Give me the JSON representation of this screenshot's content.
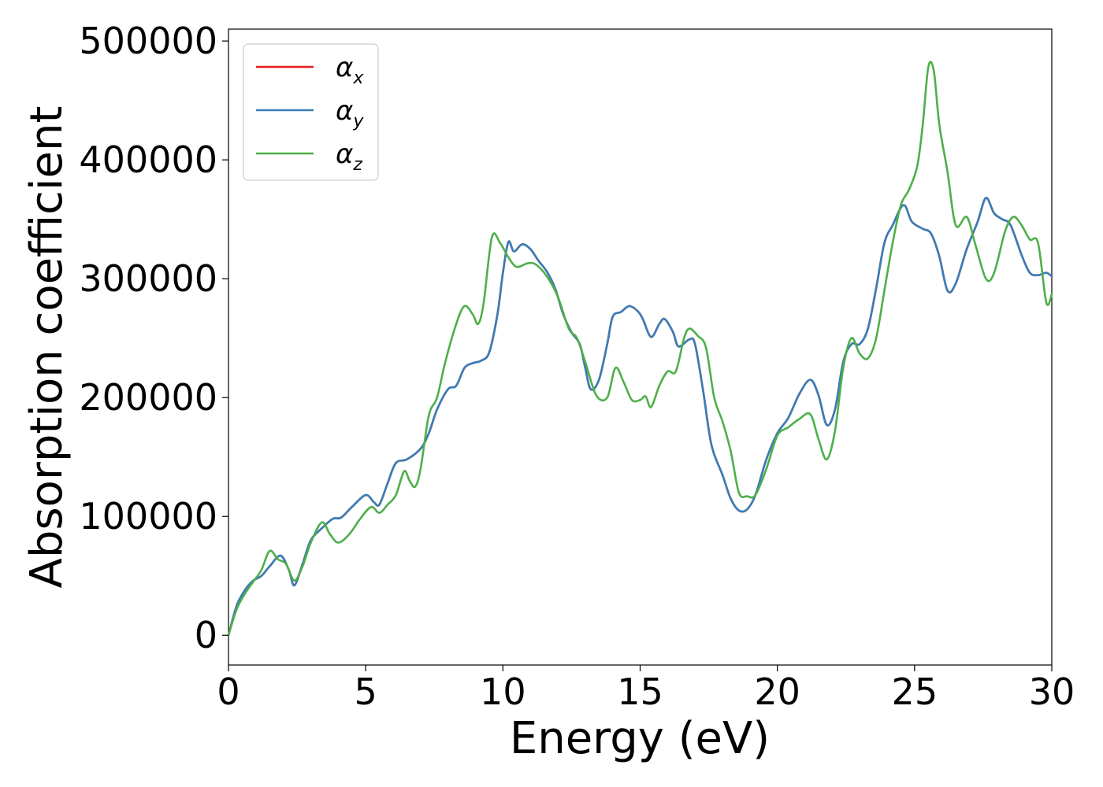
{
  "chart_data": {
    "type": "line",
    "title": "",
    "xlabel": "Energy (eV)",
    "ylabel": "Absorption coefficient",
    "xlim": [
      0,
      30
    ],
    "ylim": [
      -25000,
      510000
    ],
    "xticks": [
      "0",
      "5",
      "10",
      "15",
      "20",
      "25",
      "30"
    ],
    "yticks": [
      "0",
      "100000",
      "200000",
      "300000",
      "400000",
      "500000"
    ],
    "grid": false,
    "legend_position": "top-left",
    "series": [
      {
        "name": "α",
        "subscript": "x",
        "color": "#e41a1c",
        "points": [
          [
            0,
            0
          ],
          [
            0.3,
            25000
          ],
          [
            0.6,
            38000
          ],
          [
            0.9,
            46000
          ],
          [
            1.2,
            50000
          ],
          [
            1.5,
            58000
          ],
          [
            1.9,
            67000
          ],
          [
            2.2,
            55000
          ],
          [
            2.4,
            42000
          ],
          [
            2.7,
            60000
          ],
          [
            3.0,
            80000
          ],
          [
            3.4,
            90000
          ],
          [
            3.8,
            98000
          ],
          [
            4.1,
            99000
          ],
          [
            4.5,
            108000
          ],
          [
            5.0,
            118000
          ],
          [
            5.3,
            112000
          ],
          [
            5.5,
            110000
          ],
          [
            5.8,
            128000
          ],
          [
            6.1,
            145000
          ],
          [
            6.5,
            148000
          ],
          [
            7.0,
            157000
          ],
          [
            7.3,
            170000
          ],
          [
            7.6,
            190000
          ],
          [
            8.0,
            207000
          ],
          [
            8.3,
            210000
          ],
          [
            8.6,
            225000
          ],
          [
            8.9,
            229000
          ],
          [
            9.2,
            231000
          ],
          [
            9.5,
            238000
          ],
          [
            9.8,
            270000
          ],
          [
            10.0,
            305000
          ],
          [
            10.2,
            331000
          ],
          [
            10.4,
            323000
          ],
          [
            10.7,
            329000
          ],
          [
            11.0,
            325000
          ],
          [
            11.3,
            315000
          ],
          [
            11.6,
            306000
          ],
          [
            11.9,
            292000
          ],
          [
            12.2,
            270000
          ],
          [
            12.5,
            255000
          ],
          [
            12.8,
            245000
          ],
          [
            13.0,
            225000
          ],
          [
            13.2,
            207000
          ],
          [
            13.5,
            215000
          ],
          [
            13.8,
            245000
          ],
          [
            14.0,
            268000
          ],
          [
            14.3,
            272000
          ],
          [
            14.6,
            277000
          ],
          [
            14.9,
            273000
          ],
          [
            15.1,
            266000
          ],
          [
            15.4,
            251000
          ],
          [
            15.7,
            262000
          ],
          [
            15.9,
            266000
          ],
          [
            16.2,
            255000
          ],
          [
            16.4,
            243000
          ],
          [
            16.8,
            249000
          ],
          [
            17.0,
            245000
          ],
          [
            17.3,
            205000
          ],
          [
            17.6,
            160000
          ],
          [
            18.0,
            135000
          ],
          [
            18.3,
            115000
          ],
          [
            18.6,
            105000
          ],
          [
            18.9,
            106000
          ],
          [
            19.2,
            118000
          ],
          [
            19.6,
            148000
          ],
          [
            20.0,
            170000
          ],
          [
            20.4,
            183000
          ],
          [
            20.8,
            203000
          ],
          [
            21.2,
            215000
          ],
          [
            21.5,
            202000
          ],
          [
            21.8,
            177000
          ],
          [
            22.1,
            190000
          ],
          [
            22.4,
            230000
          ],
          [
            22.7,
            245000
          ],
          [
            23.0,
            245000
          ],
          [
            23.3,
            258000
          ],
          [
            23.6,
            292000
          ],
          [
            23.9,
            330000
          ],
          [
            24.2,
            345000
          ],
          [
            24.6,
            362000
          ],
          [
            24.9,
            348000
          ],
          [
            25.3,
            342000
          ],
          [
            25.6,
            338000
          ],
          [
            25.9,
            319000
          ],
          [
            26.2,
            290000
          ],
          [
            26.5,
            296000
          ],
          [
            26.9,
            325000
          ],
          [
            27.3,
            348000
          ],
          [
            27.6,
            368000
          ],
          [
            27.9,
            355000
          ],
          [
            28.2,
            350000
          ],
          [
            28.5,
            345000
          ],
          [
            28.9,
            320000
          ],
          [
            29.2,
            305000
          ],
          [
            29.5,
            303000
          ],
          [
            29.8,
            305000
          ],
          [
            30.0,
            302000
          ]
        ]
      },
      {
        "name": "α",
        "subscript": "y",
        "color": "#377eb8",
        "points": [
          [
            0,
            0
          ],
          [
            0.3,
            25000
          ],
          [
            0.6,
            38000
          ],
          [
            0.9,
            46000
          ],
          [
            1.2,
            50000
          ],
          [
            1.5,
            58000
          ],
          [
            1.9,
            67000
          ],
          [
            2.2,
            55000
          ],
          [
            2.4,
            42000
          ],
          [
            2.7,
            60000
          ],
          [
            3.0,
            80000
          ],
          [
            3.4,
            90000
          ],
          [
            3.8,
            98000
          ],
          [
            4.1,
            99000
          ],
          [
            4.5,
            108000
          ],
          [
            5.0,
            118000
          ],
          [
            5.3,
            112000
          ],
          [
            5.5,
            110000
          ],
          [
            5.8,
            128000
          ],
          [
            6.1,
            145000
          ],
          [
            6.5,
            148000
          ],
          [
            7.0,
            157000
          ],
          [
            7.3,
            170000
          ],
          [
            7.6,
            190000
          ],
          [
            8.0,
            207000
          ],
          [
            8.3,
            210000
          ],
          [
            8.6,
            225000
          ],
          [
            8.9,
            229000
          ],
          [
            9.2,
            231000
          ],
          [
            9.5,
            238000
          ],
          [
            9.8,
            270000
          ],
          [
            10.0,
            305000
          ],
          [
            10.2,
            331000
          ],
          [
            10.4,
            323000
          ],
          [
            10.7,
            329000
          ],
          [
            11.0,
            325000
          ],
          [
            11.3,
            315000
          ],
          [
            11.6,
            306000
          ],
          [
            11.9,
            292000
          ],
          [
            12.2,
            270000
          ],
          [
            12.5,
            255000
          ],
          [
            12.8,
            245000
          ],
          [
            13.0,
            225000
          ],
          [
            13.2,
            207000
          ],
          [
            13.5,
            215000
          ],
          [
            13.8,
            245000
          ],
          [
            14.0,
            268000
          ],
          [
            14.3,
            272000
          ],
          [
            14.6,
            277000
          ],
          [
            14.9,
            273000
          ],
          [
            15.1,
            266000
          ],
          [
            15.4,
            251000
          ],
          [
            15.7,
            262000
          ],
          [
            15.9,
            266000
          ],
          [
            16.2,
            255000
          ],
          [
            16.4,
            243000
          ],
          [
            16.8,
            249000
          ],
          [
            17.0,
            245000
          ],
          [
            17.3,
            205000
          ],
          [
            17.6,
            160000
          ],
          [
            18.0,
            135000
          ],
          [
            18.3,
            115000
          ],
          [
            18.6,
            105000
          ],
          [
            18.9,
            106000
          ],
          [
            19.2,
            118000
          ],
          [
            19.6,
            148000
          ],
          [
            20.0,
            170000
          ],
          [
            20.4,
            183000
          ],
          [
            20.8,
            203000
          ],
          [
            21.2,
            215000
          ],
          [
            21.5,
            202000
          ],
          [
            21.8,
            177000
          ],
          [
            22.1,
            190000
          ],
          [
            22.4,
            230000
          ],
          [
            22.7,
            245000
          ],
          [
            23.0,
            245000
          ],
          [
            23.3,
            258000
          ],
          [
            23.6,
            292000
          ],
          [
            23.9,
            330000
          ],
          [
            24.2,
            345000
          ],
          [
            24.6,
            362000
          ],
          [
            24.9,
            348000
          ],
          [
            25.3,
            342000
          ],
          [
            25.6,
            338000
          ],
          [
            25.9,
            319000
          ],
          [
            26.2,
            290000
          ],
          [
            26.5,
            296000
          ],
          [
            26.9,
            325000
          ],
          [
            27.3,
            348000
          ],
          [
            27.6,
            368000
          ],
          [
            27.9,
            355000
          ],
          [
            28.2,
            350000
          ],
          [
            28.5,
            345000
          ],
          [
            28.9,
            320000
          ],
          [
            29.2,
            305000
          ],
          [
            29.5,
            303000
          ],
          [
            29.8,
            305000
          ],
          [
            30.0,
            302000
          ]
        ]
      },
      {
        "name": "α",
        "subscript": "z",
        "color": "#4daf4a",
        "points": [
          [
            0,
            0
          ],
          [
            0.3,
            22000
          ],
          [
            0.6,
            35000
          ],
          [
            0.9,
            45000
          ],
          [
            1.2,
            55000
          ],
          [
            1.5,
            71000
          ],
          [
            1.8,
            64000
          ],
          [
            2.1,
            60000
          ],
          [
            2.4,
            46000
          ],
          [
            2.7,
            58000
          ],
          [
            3.0,
            78000
          ],
          [
            3.4,
            95000
          ],
          [
            3.7,
            85000
          ],
          [
            4.0,
            78000
          ],
          [
            4.4,
            85000
          ],
          [
            4.8,
            98000
          ],
          [
            5.2,
            108000
          ],
          [
            5.5,
            103000
          ],
          [
            5.8,
            110000
          ],
          [
            6.1,
            118000
          ],
          [
            6.4,
            138000
          ],
          [
            6.6,
            130000
          ],
          [
            6.8,
            125000
          ],
          [
            7.0,
            140000
          ],
          [
            7.3,
            185000
          ],
          [
            7.6,
            200000
          ],
          [
            7.9,
            230000
          ],
          [
            8.3,
            262000
          ],
          [
            8.6,
            277000
          ],
          [
            8.9,
            270000
          ],
          [
            9.1,
            262000
          ],
          [
            9.3,
            280000
          ],
          [
            9.6,
            335000
          ],
          [
            9.9,
            330000
          ],
          [
            10.2,
            318000
          ],
          [
            10.5,
            310000
          ],
          [
            10.9,
            313000
          ],
          [
            11.2,
            312000
          ],
          [
            11.6,
            302000
          ],
          [
            12.0,
            285000
          ],
          [
            12.4,
            258000
          ],
          [
            12.7,
            250000
          ],
          [
            13.0,
            230000
          ],
          [
            13.4,
            202000
          ],
          [
            13.8,
            200000
          ],
          [
            14.1,
            225000
          ],
          [
            14.4,
            213000
          ],
          [
            14.7,
            198000
          ],
          [
            15.0,
            198000
          ],
          [
            15.2,
            201000
          ],
          [
            15.4,
            192000
          ],
          [
            15.7,
            210000
          ],
          [
            16.0,
            222000
          ],
          [
            16.3,
            222000
          ],
          [
            16.6,
            250000
          ],
          [
            16.8,
            258000
          ],
          [
            17.1,
            252000
          ],
          [
            17.4,
            242000
          ],
          [
            17.7,
            200000
          ],
          [
            18.0,
            180000
          ],
          [
            18.3,
            155000
          ],
          [
            18.6,
            120000
          ],
          [
            18.9,
            117000
          ],
          [
            19.2,
            118000
          ],
          [
            19.6,
            140000
          ],
          [
            20.0,
            168000
          ],
          [
            20.4,
            175000
          ],
          [
            20.8,
            182000
          ],
          [
            21.2,
            186000
          ],
          [
            21.5,
            165000
          ],
          [
            21.8,
            148000
          ],
          [
            22.1,
            172000
          ],
          [
            22.4,
            225000
          ],
          [
            22.7,
            250000
          ],
          [
            23.0,
            237000
          ],
          [
            23.3,
            233000
          ],
          [
            23.6,
            250000
          ],
          [
            23.9,
            290000
          ],
          [
            24.2,
            330000
          ],
          [
            24.5,
            362000
          ],
          [
            24.8,
            375000
          ],
          [
            25.1,
            395000
          ],
          [
            25.3,
            430000
          ],
          [
            25.5,
            478000
          ],
          [
            25.7,
            475000
          ],
          [
            25.9,
            430000
          ],
          [
            26.2,
            390000
          ],
          [
            26.5,
            345000
          ],
          [
            26.9,
            352000
          ],
          [
            27.2,
            330000
          ],
          [
            27.6,
            300000
          ],
          [
            27.9,
            305000
          ],
          [
            28.3,
            340000
          ],
          [
            28.6,
            352000
          ],
          [
            28.9,
            345000
          ],
          [
            29.2,
            333000
          ],
          [
            29.5,
            330000
          ],
          [
            29.8,
            280000
          ],
          [
            30.0,
            287000
          ]
        ]
      }
    ]
  }
}
